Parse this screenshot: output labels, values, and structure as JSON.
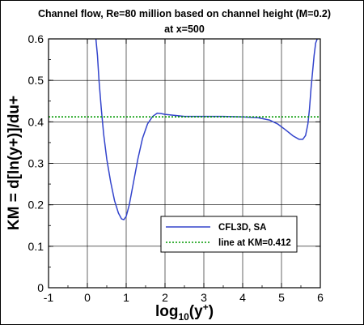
{
  "chart_data": {
    "type": "line",
    "title_line1": "Channel flow, Re=80 million based on channel height (M=0.2)",
    "title_line2": "at x=500",
    "xlabel_main": "log",
    "xlabel_sub": "10",
    "xlabel_paren": "(y",
    "xlabel_sup": "+",
    "xlabel_close": ")",
    "ylabel": "KM = d[ln(y+)]/du+",
    "xlim": [
      -1,
      6
    ],
    "ylim": [
      0,
      0.6
    ],
    "xticks": [
      "-1",
      "0",
      "1",
      "2",
      "3",
      "4",
      "5",
      "6"
    ],
    "yticks": [
      "0",
      "0.1",
      "0.2",
      "0.3",
      "0.4",
      "0.5",
      "0.6"
    ],
    "grid": true,
    "legend_position": "lower-right",
    "series": [
      {
        "name": "CFL3D, SA",
        "color": "#3344cc",
        "style": "solid",
        "x": [
          0.22,
          0.26,
          0.3,
          0.36,
          0.42,
          0.5,
          0.6,
          0.7,
          0.8,
          0.88,
          0.94,
          1.0,
          1.08,
          1.18,
          1.3,
          1.42,
          1.55,
          1.68,
          1.8,
          1.9,
          2.0,
          2.2,
          2.5,
          3.0,
          3.5,
          4.0,
          4.4,
          4.7,
          4.9,
          5.1,
          5.3,
          5.45,
          5.55,
          5.62,
          5.68,
          5.72,
          5.76,
          5.8,
          5.84,
          5.88,
          5.92
        ],
        "y": [
          0.6,
          0.56,
          0.5,
          0.43,
          0.37,
          0.31,
          0.255,
          0.21,
          0.18,
          0.166,
          0.164,
          0.172,
          0.2,
          0.25,
          0.31,
          0.36,
          0.395,
          0.413,
          0.421,
          0.42,
          0.418,
          0.416,
          0.413,
          0.413,
          0.413,
          0.412,
          0.41,
          0.404,
          0.395,
          0.381,
          0.366,
          0.358,
          0.358,
          0.367,
          0.395,
          0.43,
          0.48,
          0.52,
          0.56,
          0.59,
          0.6
        ]
      },
      {
        "name": "line at KM=0.412",
        "color": "#009900",
        "style": "dotted",
        "x": [
          -1,
          6
        ],
        "y": [
          0.412,
          0.412
        ]
      }
    ]
  }
}
